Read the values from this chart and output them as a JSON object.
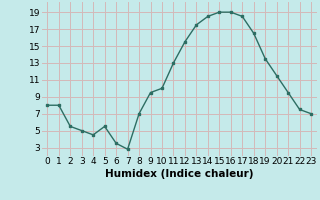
{
  "x": [
    0,
    1,
    2,
    3,
    4,
    5,
    6,
    7,
    8,
    9,
    10,
    11,
    12,
    13,
    14,
    15,
    16,
    17,
    18,
    19,
    20,
    21,
    22,
    23
  ],
  "y": [
    8,
    8,
    5.5,
    5,
    4.5,
    5.5,
    3.5,
    2.8,
    7,
    9.5,
    10,
    13,
    15.5,
    17.5,
    18.5,
    19,
    19,
    18.5,
    16.5,
    13.5,
    11.5,
    9.5,
    7.5,
    7
  ],
  "line_color": "#2d6e63",
  "marker": "s",
  "marker_size": 2.0,
  "bg_color": "#c5eaea",
  "grid_color": "#d4b8b8",
  "xlabel": "Humidex (Indice chaleur)",
  "xlabel_fontsize": 7.5,
  "ylabel_ticks": [
    3,
    5,
    7,
    9,
    11,
    13,
    15,
    17,
    19
  ],
  "xtick_labels": [
    "0",
    "1",
    "2",
    "3",
    "4",
    "5",
    "6",
    "7",
    "8",
    "9",
    "10",
    "11",
    "12",
    "13",
    "14",
    "15",
    "16",
    "17",
    "18",
    "19",
    "20",
    "21",
    "22",
    "23"
  ],
  "ylim": [
    2.0,
    20.2
  ],
  "xlim": [
    -0.5,
    23.5
  ],
  "tick_fontsize": 6.5,
  "line_width": 1.0
}
